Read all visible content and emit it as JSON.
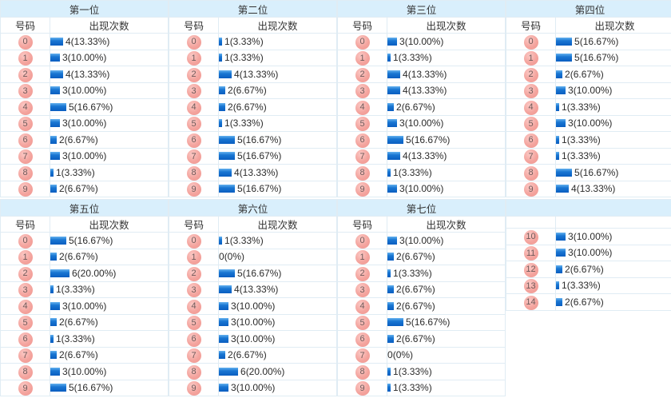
{
  "colors": {
    "header_band": "#d9effc",
    "border": "#e0ecf4",
    "bar_top": "#64b1ef",
    "bar_bottom": "#0a5ec0",
    "badge_pink": "#f4a49e",
    "badge_text": "#6f5a5a",
    "label_text": "#2b2b2b"
  },
  "panels": [
    {
      "title": "第一位",
      "col_number": "号码",
      "col_count": "出现次数",
      "rows": [
        {
          "num": "0",
          "count": 4,
          "label": "4(13.33%)"
        },
        {
          "num": "1",
          "count": 3,
          "label": "3(10.00%)"
        },
        {
          "num": "2",
          "count": 4,
          "label": "4(13.33%)"
        },
        {
          "num": "3",
          "count": 3,
          "label": "3(10.00%)"
        },
        {
          "num": "4",
          "count": 5,
          "label": "5(16.67%)"
        },
        {
          "num": "5",
          "count": 3,
          "label": "3(10.00%)"
        },
        {
          "num": "6",
          "count": 2,
          "label": "2(6.67%)"
        },
        {
          "num": "7",
          "count": 3,
          "label": "3(10.00%)"
        },
        {
          "num": "8",
          "count": 1,
          "label": "1(3.33%)"
        },
        {
          "num": "9",
          "count": 2,
          "label": "2(6.67%)"
        }
      ]
    },
    {
      "title": "第二位",
      "col_number": "号码",
      "col_count": "出现次数",
      "rows": [
        {
          "num": "0",
          "count": 1,
          "label": "1(3.33%)"
        },
        {
          "num": "1",
          "count": 1,
          "label": "1(3.33%)"
        },
        {
          "num": "2",
          "count": 4,
          "label": "4(13.33%)"
        },
        {
          "num": "3",
          "count": 2,
          "label": "2(6.67%)"
        },
        {
          "num": "4",
          "count": 2,
          "label": "2(6.67%)"
        },
        {
          "num": "5",
          "count": 1,
          "label": "1(3.33%)"
        },
        {
          "num": "6",
          "count": 5,
          "label": "5(16.67%)"
        },
        {
          "num": "7",
          "count": 5,
          "label": "5(16.67%)"
        },
        {
          "num": "8",
          "count": 4,
          "label": "4(13.33%)"
        },
        {
          "num": "9",
          "count": 5,
          "label": "5(16.67%)"
        }
      ]
    },
    {
      "title": "第三位",
      "col_number": "号码",
      "col_count": "出现次数",
      "rows": [
        {
          "num": "0",
          "count": 3,
          "label": "3(10.00%)"
        },
        {
          "num": "1",
          "count": 1,
          "label": "1(3.33%)"
        },
        {
          "num": "2",
          "count": 4,
          "label": "4(13.33%)"
        },
        {
          "num": "3",
          "count": 4,
          "label": "4(13.33%)"
        },
        {
          "num": "4",
          "count": 2,
          "label": "2(6.67%)"
        },
        {
          "num": "5",
          "count": 3,
          "label": "3(10.00%)"
        },
        {
          "num": "6",
          "count": 5,
          "label": "5(16.67%)"
        },
        {
          "num": "7",
          "count": 4,
          "label": "4(13.33%)"
        },
        {
          "num": "8",
          "count": 1,
          "label": "1(3.33%)"
        },
        {
          "num": "9",
          "count": 3,
          "label": "3(10.00%)"
        }
      ]
    },
    {
      "title": "第四位",
      "col_number": "号码",
      "col_count": "出现次数",
      "rows": [
        {
          "num": "0",
          "count": 5,
          "label": "5(16.67%)"
        },
        {
          "num": "1",
          "count": 5,
          "label": "5(16.67%)"
        },
        {
          "num": "2",
          "count": 2,
          "label": "2(6.67%)"
        },
        {
          "num": "3",
          "count": 3,
          "label": "3(10.00%)"
        },
        {
          "num": "4",
          "count": 1,
          "label": "1(3.33%)"
        },
        {
          "num": "5",
          "count": 3,
          "label": "3(10.00%)"
        },
        {
          "num": "6",
          "count": 1,
          "label": "1(3.33%)"
        },
        {
          "num": "7",
          "count": 1,
          "label": "1(3.33%)"
        },
        {
          "num": "8",
          "count": 5,
          "label": "5(16.67%)"
        },
        {
          "num": "9",
          "count": 4,
          "label": "4(13.33%)"
        }
      ]
    },
    {
      "title": "第五位",
      "col_number": "号码",
      "col_count": "出现次数",
      "rows": [
        {
          "num": "0",
          "count": 5,
          "label": "5(16.67%)"
        },
        {
          "num": "1",
          "count": 2,
          "label": "2(6.67%)"
        },
        {
          "num": "2",
          "count": 6,
          "label": "6(20.00%)"
        },
        {
          "num": "3",
          "count": 1,
          "label": "1(3.33%)"
        },
        {
          "num": "4",
          "count": 3,
          "label": "3(10.00%)"
        },
        {
          "num": "5",
          "count": 2,
          "label": "2(6.67%)"
        },
        {
          "num": "6",
          "count": 1,
          "label": "1(3.33%)"
        },
        {
          "num": "7",
          "count": 2,
          "label": "2(6.67%)"
        },
        {
          "num": "8",
          "count": 3,
          "label": "3(10.00%)"
        },
        {
          "num": "9",
          "count": 5,
          "label": "5(16.67%)"
        }
      ]
    },
    {
      "title": "第六位",
      "col_number": "号码",
      "col_count": "出现次数",
      "rows": [
        {
          "num": "0",
          "count": 1,
          "label": "1(3.33%)"
        },
        {
          "num": "1",
          "count": 0,
          "label": "0(0%)"
        },
        {
          "num": "2",
          "count": 5,
          "label": "5(16.67%)"
        },
        {
          "num": "3",
          "count": 4,
          "label": "4(13.33%)"
        },
        {
          "num": "4",
          "count": 3,
          "label": "3(10.00%)"
        },
        {
          "num": "5",
          "count": 3,
          "label": "3(10.00%)"
        },
        {
          "num": "6",
          "count": 3,
          "label": "3(10.00%)"
        },
        {
          "num": "7",
          "count": 2,
          "label": "2(6.67%)"
        },
        {
          "num": "8",
          "count": 6,
          "label": "6(20.00%)"
        },
        {
          "num": "9",
          "count": 3,
          "label": "3(10.00%)"
        }
      ]
    },
    {
      "title": "第七位",
      "col_number": "号码",
      "col_count": "出现次数",
      "rows": [
        {
          "num": "0",
          "count": 3,
          "label": "3(10.00%)"
        },
        {
          "num": "1",
          "count": 2,
          "label": "2(6.67%)"
        },
        {
          "num": "2",
          "count": 1,
          "label": "1(3.33%)"
        },
        {
          "num": "3",
          "count": 2,
          "label": "2(6.67%)"
        },
        {
          "num": "4",
          "count": 2,
          "label": "2(6.67%)"
        },
        {
          "num": "5",
          "count": 5,
          "label": "5(16.67%)"
        },
        {
          "num": "6",
          "count": 2,
          "label": "2(6.67%)"
        },
        {
          "num": "7",
          "count": 0,
          "label": "0(0%)"
        },
        {
          "num": "8",
          "count": 1,
          "label": "1(3.33%)"
        },
        {
          "num": "9",
          "count": 1,
          "label": "1(3.33%)"
        }
      ]
    },
    {
      "title": "",
      "col_number": "",
      "col_count": "",
      "rows": [
        {
          "num": "10",
          "count": 3,
          "label": "3(10.00%)"
        },
        {
          "num": "11",
          "count": 3,
          "label": "3(10.00%)"
        },
        {
          "num": "12",
          "count": 2,
          "label": "2(6.67%)"
        },
        {
          "num": "13",
          "count": 1,
          "label": "1(3.33%)"
        },
        {
          "num": "14",
          "count": 2,
          "label": "2(6.67%)"
        }
      ]
    }
  ],
  "chart_data": [
    {
      "type": "bar",
      "title": "第一位",
      "xlabel": "号码",
      "ylabel": "出现次数",
      "categories": [
        0,
        1,
        2,
        3,
        4,
        5,
        6,
        7,
        8,
        9
      ],
      "values": [
        4,
        3,
        4,
        3,
        5,
        3,
        2,
        3,
        1,
        2
      ],
      "value_labels": [
        "4(13.33%)",
        "3(10.00%)",
        "4(13.33%)",
        "3(10.00%)",
        "5(16.67%)",
        "3(10.00%)",
        "2(6.67%)",
        "3(10.00%)",
        "1(3.33%)",
        "2(6.67%)"
      ]
    },
    {
      "type": "bar",
      "title": "第二位",
      "xlabel": "号码",
      "ylabel": "出现次数",
      "categories": [
        0,
        1,
        2,
        3,
        4,
        5,
        6,
        7,
        8,
        9
      ],
      "values": [
        1,
        1,
        4,
        2,
        2,
        1,
        5,
        5,
        4,
        5
      ],
      "value_labels": [
        "1(3.33%)",
        "1(3.33%)",
        "4(13.33%)",
        "2(6.67%)",
        "2(6.67%)",
        "1(3.33%)",
        "5(16.67%)",
        "5(16.67%)",
        "4(13.33%)",
        "5(16.67%)"
      ]
    },
    {
      "type": "bar",
      "title": "第三位",
      "xlabel": "号码",
      "ylabel": "出现次数",
      "categories": [
        0,
        1,
        2,
        3,
        4,
        5,
        6,
        7,
        8,
        9
      ],
      "values": [
        3,
        1,
        4,
        4,
        2,
        3,
        5,
        4,
        1,
        3
      ],
      "value_labels": [
        "3(10.00%)",
        "1(3.33%)",
        "4(13.33%)",
        "4(13.33%)",
        "2(6.67%)",
        "3(10.00%)",
        "5(16.67%)",
        "4(13.33%)",
        "1(3.33%)",
        "3(10.00%)"
      ]
    },
    {
      "type": "bar",
      "title": "第四位",
      "xlabel": "号码",
      "ylabel": "出现次数",
      "categories": [
        0,
        1,
        2,
        3,
        4,
        5,
        6,
        7,
        8,
        9
      ],
      "values": [
        5,
        5,
        2,
        3,
        1,
        3,
        1,
        1,
        5,
        4
      ],
      "value_labels": [
        "5(16.67%)",
        "5(16.67%)",
        "2(6.67%)",
        "3(10.00%)",
        "1(3.33%)",
        "3(10.00%)",
        "1(3.33%)",
        "1(3.33%)",
        "5(16.67%)",
        "4(13.33%)"
      ]
    },
    {
      "type": "bar",
      "title": "第五位",
      "xlabel": "号码",
      "ylabel": "出现次数",
      "categories": [
        0,
        1,
        2,
        3,
        4,
        5,
        6,
        7,
        8,
        9
      ],
      "values": [
        5,
        2,
        6,
        1,
        3,
        2,
        1,
        2,
        3,
        5
      ],
      "value_labels": [
        "5(16.67%)",
        "2(6.67%)",
        "6(20.00%)",
        "1(3.33%)",
        "3(10.00%)",
        "2(6.67%)",
        "1(3.33%)",
        "2(6.67%)",
        "3(10.00%)",
        "5(16.67%)"
      ]
    },
    {
      "type": "bar",
      "title": "第六位",
      "xlabel": "号码",
      "ylabel": "出现次数",
      "categories": [
        0,
        1,
        2,
        3,
        4,
        5,
        6,
        7,
        8,
        9
      ],
      "values": [
        1,
        0,
        5,
        4,
        3,
        3,
        3,
        2,
        6,
        3
      ],
      "value_labels": [
        "1(3.33%)",
        "0(0%)",
        "5(16.67%)",
        "4(13.33%)",
        "3(10.00%)",
        "3(10.00%)",
        "3(10.00%)",
        "2(6.67%)",
        "6(20.00%)",
        "3(10.00%)"
      ]
    },
    {
      "type": "bar",
      "title": "第七位",
      "xlabel": "号码",
      "ylabel": "出现次数",
      "categories": [
        0,
        1,
        2,
        3,
        4,
        5,
        6,
        7,
        8,
        9,
        10,
        11,
        12,
        13,
        14
      ],
      "values": [
        3,
        2,
        1,
        2,
        2,
        5,
        2,
        0,
        1,
        1,
        3,
        3,
        2,
        1,
        2
      ],
      "value_labels": [
        "3(10.00%)",
        "2(6.67%)",
        "1(3.33%)",
        "2(6.67%)",
        "2(6.67%)",
        "5(16.67%)",
        "2(6.67%)",
        "0(0%)",
        "1(3.33%)",
        "1(3.33%)",
        "3(10.00%)",
        "3(10.00%)",
        "2(6.67%)",
        "1(3.33%)",
        "2(6.67%)"
      ]
    }
  ]
}
